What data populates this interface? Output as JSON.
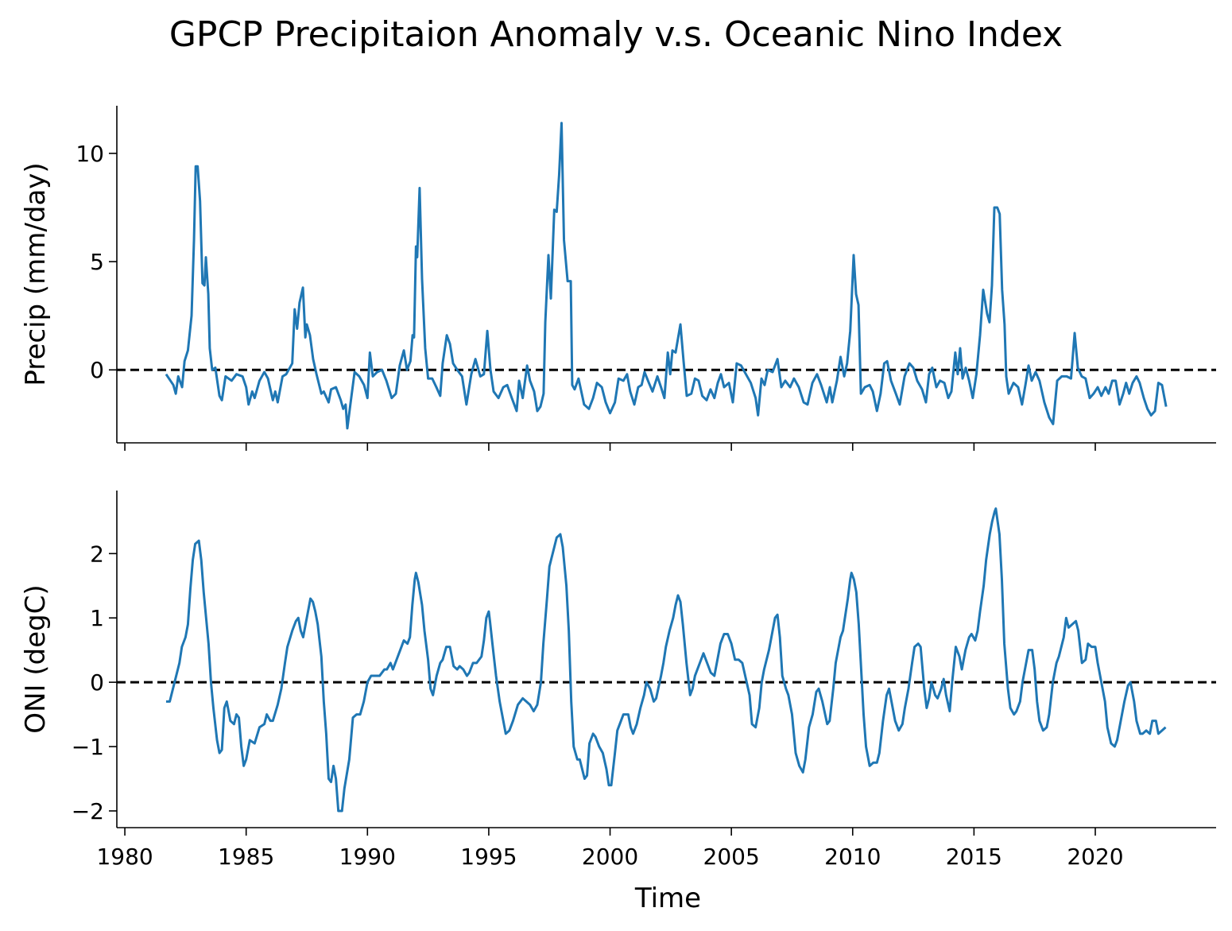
{
  "title": "GPCP Precipitaion Anomaly v.s. Oceanic Nino Index",
  "chart_data": [
    {
      "type": "line",
      "ylabel": "Precip (mm/day)",
      "color": "#1f77b4",
      "hline": 0,
      "xlim": [
        1979.67,
        2024.98
      ],
      "ylim": [
        -3.37,
        12.2
      ],
      "xticks": [
        1980,
        1985,
        1990,
        1995,
        2000,
        2005,
        2010,
        2015,
        2020
      ],
      "yticks": [
        0,
        5,
        10
      ],
      "x": [
        1981.7,
        1982.0,
        1982.1,
        1982.2,
        1982.36,
        1982.46,
        1982.6,
        1982.75,
        1982.85,
        1982.92,
        1983.0,
        1983.1,
        1983.2,
        1983.28,
        1983.34,
        1983.44,
        1983.5,
        1983.6,
        1983.73,
        1983.9,
        1984.0,
        1984.15,
        1984.4,
        1984.6,
        1984.85,
        1985.0,
        1985.1,
        1985.25,
        1985.35,
        1985.55,
        1985.75,
        1985.9,
        1986.1,
        1986.2,
        1986.3,
        1986.5,
        1986.65,
        1986.9,
        1987.0,
        1987.1,
        1987.2,
        1987.34,
        1987.44,
        1987.5,
        1987.63,
        1987.76,
        1987.9,
        1988.1,
        1988.2,
        1988.4,
        1988.5,
        1988.7,
        1988.9,
        1989.0,
        1989.1,
        1989.17,
        1989.33,
        1989.47,
        1989.66,
        1989.86,
        1990.0,
        1990.1,
        1990.22,
        1990.4,
        1990.6,
        1990.78,
        1991.0,
        1991.17,
        1991.33,
        1991.5,
        1991.63,
        1991.77,
        1991.86,
        1991.92,
        1992.0,
        1992.05,
        1992.15,
        1992.25,
        1992.38,
        1992.5,
        1992.67,
        1992.84,
        1993.0,
        1993.1,
        1993.27,
        1993.4,
        1993.53,
        1993.7,
        1993.9,
        1994.08,
        1994.28,
        1994.45,
        1994.65,
        1994.8,
        1994.94,
        1995.07,
        1995.2,
        1995.4,
        1995.6,
        1995.76,
        1995.95,
        1996.15,
        1996.25,
        1996.4,
        1996.58,
        1996.7,
        1996.87,
        1997.0,
        1997.13,
        1997.26,
        1997.33,
        1997.46,
        1997.56,
        1997.7,
        1997.8,
        1997.9,
        1998.0,
        1998.1,
        1998.25,
        1998.38,
        1998.44,
        1998.54,
        1998.7,
        1998.93,
        1999.13,
        1999.3,
        1999.46,
        1999.66,
        1999.82,
        2000.0,
        2000.2,
        2000.35,
        2000.55,
        2000.7,
        2000.83,
        2001.0,
        2001.16,
        2001.3,
        2001.42,
        2001.6,
        2001.75,
        2001.95,
        2002.1,
        2002.24,
        2002.38,
        2002.48,
        2002.57,
        2002.7,
        2002.9,
        2003.03,
        2003.16,
        2003.35,
        2003.5,
        2003.65,
        2003.8,
        2003.98,
        2004.14,
        2004.3,
        2004.44,
        2004.57,
        2004.7,
        2004.9,
        2005.06,
        2005.22,
        2005.4,
        2005.6,
        2005.8,
        2006.0,
        2006.1,
        2006.24,
        2006.37,
        2006.5,
        2006.7,
        2006.9,
        2007.06,
        2007.22,
        2007.42,
        2007.58,
        2007.78,
        2007.98,
        2008.14,
        2008.34,
        2008.53,
        2008.7,
        2008.93,
        2009.06,
        2009.16,
        2009.35,
        2009.5,
        2009.65,
        2009.77,
        2009.9,
        2010.04,
        2010.14,
        2010.24,
        2010.34,
        2010.5,
        2010.7,
        2010.83,
        2011.0,
        2011.15,
        2011.3,
        2011.42,
        2011.58,
        2011.78,
        2011.94,
        2012.14,
        2012.34,
        2012.5,
        2012.66,
        2012.86,
        2013.02,
        2013.15,
        2013.28,
        2013.45,
        2013.6,
        2013.78,
        2013.94,
        2014.07,
        2014.23,
        2014.33,
        2014.43,
        2014.53,
        2014.66,
        2014.8,
        2014.95,
        2015.1,
        2015.25,
        2015.38,
        2015.54,
        2015.64,
        2015.74,
        2015.84,
        2015.96,
        2016.06,
        2016.16,
        2016.26,
        2016.33,
        2016.43,
        2016.63,
        2016.82,
        2016.98,
        2017.12,
        2017.25,
        2017.38,
        2017.54,
        2017.7,
        2017.9,
        2018.1,
        2018.26,
        2018.43,
        2018.62,
        2018.82,
        2019.0,
        2019.15,
        2019.28,
        2019.44,
        2019.6,
        2019.77,
        2019.93,
        2020.1,
        2020.25,
        2020.42,
        2020.55,
        2020.7,
        2020.84,
        2021.0,
        2021.15,
        2021.27,
        2021.4,
        2021.54,
        2021.7,
        2021.83,
        2022.0,
        2022.15,
        2022.3,
        2022.46,
        2022.6,
        2022.75,
        2022.92
      ],
      "values": [
        -0.2,
        -0.7,
        -1.1,
        -0.3,
        -0.8,
        0.4,
        0.9,
        2.5,
        6,
        9.4,
        9.4,
        7.8,
        4,
        3.9,
        5.2,
        3.5,
        1,
        0,
        0.1,
        -1.2,
        -1.4,
        -0.3,
        -0.5,
        -0.2,
        -0.3,
        -0.8,
        -1.6,
        -1.0,
        -1.3,
        -0.5,
        -0.1,
        -0.4,
        -1.4,
        -1.0,
        -1.5,
        -0.3,
        -0.2,
        0.3,
        2.8,
        1.9,
        3.1,
        3.8,
        1.5,
        2.1,
        1.6,
        0.5,
        -0.2,
        -1.1,
        -1.0,
        -1.5,
        -0.9,
        -0.8,
        -1.4,
        -1.8,
        -1.6,
        -2.7,
        -1.3,
        -0.1,
        -0.3,
        -0.7,
        -1.3,
        0.8,
        -0.3,
        -0.1,
        0,
        -0.5,
        -1.3,
        -1.1,
        0.2,
        0.9,
        0,
        0.4,
        1.6,
        1.5,
        5.7,
        5.2,
        8.4,
        4.2,
        1,
        -0.4,
        -0.4,
        -0.8,
        -1.2,
        0.3,
        1.6,
        1.2,
        0.3,
        0,
        -0.3,
        -1.6,
        -0.2,
        0.5,
        -0.3,
        -0.2,
        1.8,
        0,
        -1.0,
        -1.3,
        -0.8,
        -0.7,
        -1.3,
        -1.9,
        -0.5,
        -1.3,
        0.2,
        -0.5,
        -1,
        -1.9,
        -1.7,
        -1.1,
        2.2,
        5.3,
        3.3,
        7.4,
        7.3,
        9.0,
        11.4,
        6,
        4.1,
        4.1,
        -0.7,
        -0.9,
        -0.4,
        -1.6,
        -1.8,
        -1.3,
        -0.6,
        -0.8,
        -1.5,
        -2.0,
        -1.5,
        -0.4,
        -0.5,
        -0.2,
        -1.0,
        -1.6,
        -0.8,
        -0.7,
        -0.1,
        -0.6,
        -1.0,
        -0.3,
        -0.8,
        -1.3,
        0.8,
        -0.2,
        0.9,
        0.8,
        2.1,
        0.4,
        -1.2,
        -1.1,
        -0.4,
        -0.5,
        -1.2,
        -1.4,
        -0.9,
        -1.3,
        -0.6,
        -0.2,
        -0.8,
        -0.6,
        -1.5,
        0.3,
        0.2,
        -0.2,
        -0.6,
        -1.3,
        -2.1,
        -0.4,
        -0.7,
        0,
        -0.1,
        0.5,
        -0.8,
        -0.5,
        -0.8,
        -0.4,
        -0.8,
        -1.5,
        -1.6,
        -0.6,
        -0.2,
        -0.7,
        -1.5,
        -0.8,
        -1.5,
        -0.5,
        0.6,
        -0.3,
        0.3,
        1.8,
        5.3,
        3.5,
        3,
        -1.1,
        -0.8,
        -0.7,
        -1,
        -1.9,
        -1.1,
        0.3,
        0.4,
        -0.5,
        -1.1,
        -1.6,
        -0.3,
        0.3,
        0.1,
        -0.5,
        -0.9,
        -1.5,
        -0.2,
        0.1,
        -0.8,
        -0.5,
        -0.6,
        -1.3,
        -1.0,
        0.8,
        -0.2,
        1.0,
        -0.4,
        0.1,
        -0.5,
        -1.3,
        -0.2,
        1.6,
        3.7,
        2.6,
        2.2,
        3.9,
        7.5,
        7.5,
        7.2,
        3.7,
        2.1,
        -0.3,
        -1.1,
        -0.6,
        -0.8,
        -1.6,
        -0.7,
        0.2,
        -0.5,
        -0.1,
        -0.5,
        -1.5,
        -2.2,
        -2.5,
        -0.5,
        -0.3,
        -0.3,
        -0.4,
        1.7,
        0.1,
        -0.3,
        -0.4,
        -1.3,
        -1.1,
        -0.8,
        -1.2,
        -0.8,
        -1.1,
        -0.5,
        -0.5,
        -1.6,
        -1.1,
        -0.6,
        -1.1,
        -0.6,
        -0.3,
        -0.6,
        -1.3,
        -1.8,
        -2.1,
        -1.9,
        -0.6,
        -0.7,
        -1.7
      ]
    },
    {
      "type": "line",
      "ylabel": "ONI (degC)",
      "xlabel": "Time",
      "color": "#1f77b4",
      "hline": 0,
      "xlim": [
        1979.67,
        2024.98
      ],
      "ylim": [
        -2.26,
        2.98
      ],
      "xticks": [
        1980,
        1985,
        1990,
        1995,
        2000,
        2005,
        2010,
        2015,
        2020
      ],
      "yticks": [
        {
          "value": -2,
          "label": "−2"
        },
        {
          "value": -1,
          "label": "−1"
        },
        0,
        1,
        2
      ],
      "x": [
        1981.7,
        1981.85,
        1982.05,
        1982.25,
        1982.35,
        1982.5,
        1982.6,
        1982.7,
        1982.8,
        1982.9,
        1983.05,
        1983.15,
        1983.25,
        1983.35,
        1983.45,
        1983.55,
        1983.65,
        1983.8,
        1983.9,
        1984.0,
        1984.1,
        1984.2,
        1984.35,
        1984.5,
        1984.6,
        1984.7,
        1984.8,
        1984.9,
        1985.0,
        1985.15,
        1985.35,
        1985.55,
        1985.75,
        1985.85,
        1986.0,
        1986.1,
        1986.3,
        1986.45,
        1986.6,
        1986.7,
        1986.9,
        1987.05,
        1987.15,
        1987.25,
        1987.35,
        1987.5,
        1987.65,
        1987.75,
        1987.85,
        1987.95,
        1988.1,
        1988.2,
        1988.3,
        1988.4,
        1988.5,
        1988.6,
        1988.7,
        1988.8,
        1988.95,
        1989.05,
        1989.25,
        1989.4,
        1989.55,
        1989.7,
        1989.85,
        1990.0,
        1990.15,
        1990.35,
        1990.5,
        1990.7,
        1990.8,
        1990.95,
        1991.05,
        1991.15,
        1991.35,
        1991.5,
        1991.65,
        1991.75,
        1991.85,
        1991.95,
        1992.0,
        1992.1,
        1992.25,
        1992.35,
        1992.5,
        1992.6,
        1992.7,
        1992.85,
        1993.0,
        1993.1,
        1993.25,
        1993.4,
        1993.55,
        1993.7,
        1993.8,
        1993.95,
        1994.1,
        1994.2,
        1994.35,
        1994.5,
        1994.7,
        1994.8,
        1994.9,
        1995.0,
        1995.05,
        1995.15,
        1995.3,
        1995.45,
        1995.6,
        1995.7,
        1995.85,
        1996.0,
        1996.2,
        1996.4,
        1996.55,
        1996.7,
        1996.85,
        1997.0,
        1997.15,
        1997.25,
        1997.4,
        1997.5,
        1997.7,
        1997.8,
        1997.95,
        1998.05,
        1998.2,
        1998.3,
        1998.4,
        1998.5,
        1998.65,
        1998.75,
        1998.95,
        1999.05,
        1999.15,
        1999.3,
        1999.4,
        1999.55,
        1999.7,
        1999.85,
        1999.95,
        2000.05,
        2000.2,
        2000.3,
        2000.45,
        2000.55,
        2000.75,
        2000.85,
        2000.95,
        2001.1,
        2001.25,
        2001.4,
        2001.5,
        2001.65,
        2001.8,
        2001.9,
        2002.1,
        2002.2,
        2002.3,
        2002.45,
        2002.6,
        2002.7,
        2002.8,
        2002.9,
        2003.0,
        2003.15,
        2003.3,
        2003.4,
        2003.5,
        2003.7,
        2003.85,
        2004.0,
        2004.15,
        2004.3,
        2004.4,
        2004.55,
        2004.7,
        2004.85,
        2005.0,
        2005.15,
        2005.3,
        2005.45,
        2005.6,
        2005.75,
        2005.85,
        2006.0,
        2006.15,
        2006.25,
        2006.35,
        2006.55,
        2006.65,
        2006.8,
        2006.9,
        2007.0,
        2007.1,
        2007.25,
        2007.35,
        2007.5,
        2007.65,
        2007.8,
        2007.95,
        2008.05,
        2008.2,
        2008.35,
        2008.5,
        2008.6,
        2008.75,
        2008.95,
        2009.05,
        2009.2,
        2009.3,
        2009.5,
        2009.6,
        2009.8,
        2009.9,
        2009.95,
        2010.05,
        2010.15,
        2010.25,
        2010.35,
        2010.45,
        2010.55,
        2010.7,
        2010.85,
        2011.0,
        2011.1,
        2011.25,
        2011.4,
        2011.5,
        2011.6,
        2011.75,
        2011.9,
        2012.05,
        2012.15,
        2012.3,
        2012.45,
        2012.55,
        2012.7,
        2012.8,
        2012.95,
        2013.05,
        2013.15,
        2013.25,
        2013.4,
        2013.5,
        2013.65,
        2013.75,
        2013.85,
        2014.0,
        2014.1,
        2014.25,
        2014.4,
        2014.5,
        2014.65,
        2014.8,
        2014.9,
        2015.05,
        2015.15,
        2015.25,
        2015.4,
        2015.5,
        2015.65,
        2015.75,
        2015.85,
        2015.9,
        2016.05,
        2016.15,
        2016.25,
        2016.4,
        2016.5,
        2016.65,
        2016.75,
        2016.9,
        2017.0,
        2017.15,
        2017.25,
        2017.4,
        2017.5,
        2017.6,
        2017.7,
        2017.85,
        2018.0,
        2018.1,
        2018.25,
        2018.4,
        2018.5,
        2018.7,
        2018.8,
        2018.9,
        2019.05,
        2019.2,
        2019.3,
        2019.45,
        2019.6,
        2019.7,
        2019.85,
        2020.0,
        2020.1,
        2020.25,
        2020.4,
        2020.5,
        2020.65,
        2020.8,
        2020.9,
        2021.05,
        2021.2,
        2021.35,
        2021.45,
        2021.6,
        2021.7,
        2021.85,
        2021.95,
        2022.1,
        2022.25,
        2022.35,
        2022.5,
        2022.6,
        2022.75,
        2022.9
      ],
      "values": [
        -0.3,
        -0.3,
        0.0,
        0.3,
        0.55,
        0.7,
        0.9,
        1.45,
        1.9,
        2.15,
        2.2,
        1.9,
        1.4,
        1.0,
        0.6,
        0,
        -0.4,
        -0.9,
        -1.1,
        -1.05,
        -0.4,
        -0.3,
        -0.6,
        -0.65,
        -0.5,
        -0.55,
        -1.0,
        -1.3,
        -1.2,
        -0.9,
        -0.95,
        -0.7,
        -0.65,
        -0.5,
        -0.6,
        -0.6,
        -0.35,
        -0.1,
        0.3,
        0.55,
        0.8,
        0.95,
        1.0,
        0.8,
        0.7,
        1.0,
        1.3,
        1.25,
        1.1,
        0.9,
        0.4,
        -0.3,
        -0.8,
        -1.5,
        -1.55,
        -1.3,
        -1.5,
        -2.0,
        -2.0,
        -1.65,
        -1.2,
        -0.55,
        -0.5,
        -0.5,
        -0.3,
        0,
        0.1,
        0.1,
        0.1,
        0.2,
        0.2,
        0.3,
        0.2,
        0.3,
        0.5,
        0.65,
        0.6,
        0.7,
        1.2,
        1.6,
        1.7,
        1.55,
        1.2,
        0.8,
        0.35,
        -0.1,
        -0.2,
        0.1,
        0.3,
        0.35,
        0.55,
        0.55,
        0.25,
        0.2,
        0.25,
        0.2,
        0.1,
        0.15,
        0.3,
        0.3,
        0.4,
        0.65,
        1.0,
        1.1,
        0.95,
        0.6,
        0.1,
        -0.3,
        -0.6,
        -0.8,
        -0.75,
        -0.6,
        -0.35,
        -0.25,
        -0.3,
        -0.35,
        -0.45,
        -0.35,
        0,
        0.6,
        1.3,
        1.8,
        2.1,
        2.25,
        2.3,
        2.1,
        1.5,
        0.8,
        -0.3,
        -1.0,
        -1.2,
        -1.2,
        -1.5,
        -1.45,
        -0.95,
        -0.8,
        -0.85,
        -1.0,
        -1.1,
        -1.35,
        -1.6,
        -1.6,
        -1.1,
        -0.75,
        -0.6,
        -0.5,
        -0.5,
        -0.7,
        -0.8,
        -0.65,
        -0.4,
        -0.2,
        0,
        -0.1,
        -0.3,
        -0.25,
        0.1,
        0.3,
        0.55,
        0.8,
        1.0,
        1.2,
        1.35,
        1.25,
        0.9,
        0.3,
        -0.2,
        -0.1,
        0.1,
        0.3,
        0.45,
        0.3,
        0.15,
        0.1,
        0.3,
        0.6,
        0.75,
        0.75,
        0.6,
        0.35,
        0.35,
        0.3,
        0.05,
        -0.2,
        -0.65,
        -0.7,
        -0.4,
        0,
        0.2,
        0.5,
        0.7,
        1.0,
        1.05,
        0.7,
        0.1,
        -0.1,
        -0.2,
        -0.5,
        -1.1,
        -1.3,
        -1.4,
        -1.2,
        -0.7,
        -0.5,
        -0.15,
        -0.1,
        -0.3,
        -0.65,
        -0.6,
        -0.1,
        0.3,
        0.7,
        0.8,
        1.3,
        1.6,
        1.7,
        1.6,
        1.4,
        0.9,
        0.2,
        -0.5,
        -1.0,
        -1.3,
        -1.25,
        -1.25,
        -1.1,
        -0.6,
        -0.2,
        -0.1,
        -0.3,
        -0.6,
        -0.75,
        -0.65,
        -0.4,
        -0.1,
        0.3,
        0.55,
        0.6,
        0.55,
        -0.1,
        -0.4,
        -0.25,
        0,
        -0.2,
        -0.25,
        -0.1,
        0.05,
        -0.2,
        -0.45,
        0,
        0.55,
        0.4,
        0.2,
        0.5,
        0.7,
        0.75,
        0.65,
        0.8,
        1.1,
        1.5,
        1.9,
        2.3,
        2.5,
        2.65,
        2.7,
        2.3,
        1.6,
        0.6,
        -0.1,
        -0.4,
        -0.5,
        -0.45,
        -0.3,
        0,
        0.3,
        0.5,
        0.5,
        0.2,
        -0.3,
        -0.6,
        -0.75,
        -0.7,
        -0.5,
        0,
        0.3,
        0.4,
        0.7,
        1.0,
        0.85,
        0.9,
        0.95,
        0.8,
        0.3,
        0.35,
        0.6,
        0.55,
        0.55,
        0.3,
        0,
        -0.3,
        -0.7,
        -0.95,
        -1.0,
        -0.9,
        -0.6,
        -0.3,
        -0.05,
        0,
        -0.3,
        -0.6,
        -0.8,
        -0.8,
        -0.75,
        -0.8,
        -0.6,
        -0.6,
        -0.8,
        -0.75,
        -0.7
      ]
    }
  ]
}
